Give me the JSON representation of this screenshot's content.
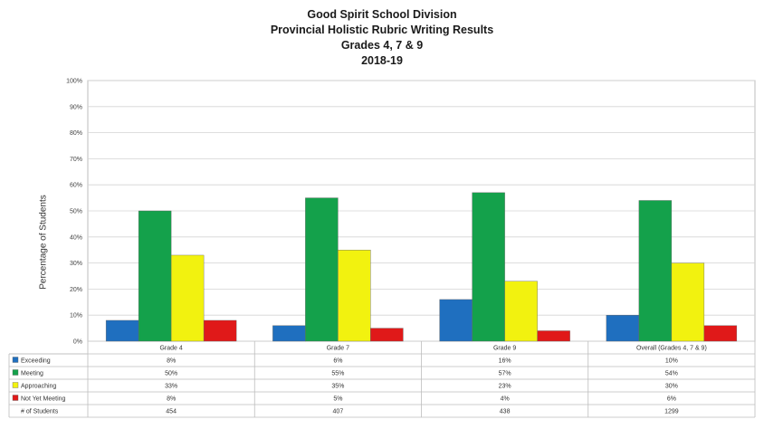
{
  "chart_data": {
    "type": "bar",
    "title_lines": [
      "Good Spirit School Division",
      "Provincial Holistic Rubric Writing Results",
      "Grades 4, 7 & 9",
      "2018-19"
    ],
    "ylabel": "Percentage of Students",
    "ylim": [
      0,
      100
    ],
    "yticks": [
      "0%",
      "10%",
      "20%",
      "30%",
      "40%",
      "50%",
      "60%",
      "70%",
      "80%",
      "90%",
      "100%"
    ],
    "categories": [
      "Grade 4",
      "Grade 7",
      "Grade 9",
      "Overall (Grades 4, 7 & 9)"
    ],
    "series": [
      {
        "name": "Exceeding",
        "color": "#1f6fbf",
        "values": [
          8,
          6,
          16,
          10
        ],
        "labels": [
          "8%",
          "6%",
          "16%",
          "10%"
        ]
      },
      {
        "name": "Meeting",
        "color": "#14a14b",
        "values": [
          50,
          55,
          57,
          54
        ],
        "labels": [
          "50%",
          "55%",
          "57%",
          "54%"
        ]
      },
      {
        "name": "Approaching",
        "color": "#f2f20f",
        "values": [
          33,
          35,
          23,
          30
        ],
        "labels": [
          "33%",
          "35%",
          "23%",
          "30%"
        ]
      },
      {
        "name": "Not Yet Meeting",
        "color": "#e01919",
        "values": [
          8,
          5,
          4,
          6
        ],
        "labels": [
          "8%",
          "5%",
          "4%",
          "6%"
        ]
      }
    ],
    "students_row": {
      "label": "# of Students",
      "values": [
        "454",
        "407",
        "438",
        "1299"
      ]
    },
    "grid": true,
    "legend": "data-table"
  }
}
